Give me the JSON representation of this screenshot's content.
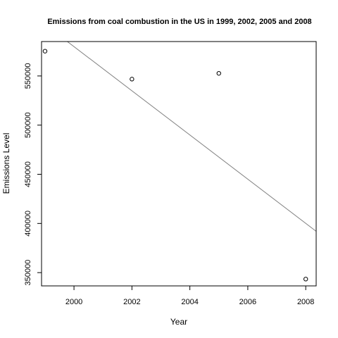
{
  "chart_data": {
    "type": "scatter",
    "title": "Emissions from coal combustion in the US in 1999, 2002, 2005 and 2008",
    "xlabel": "Year",
    "ylabel": "Emissions Level",
    "x": [
      1999,
      2002,
      2005,
      2008
    ],
    "y": [
      575207,
      546789,
      552675,
      343432
    ],
    "xlim": [
      1998.88,
      2008.36
    ],
    "ylim": [
      336500,
      585000
    ],
    "xticks": [
      2000,
      2002,
      2004,
      2006,
      2008
    ],
    "xtick_labels": [
      "2000",
      "2002",
      "2004",
      "2006",
      "2008"
    ],
    "yticks": [
      350000,
      400000,
      450000,
      500000,
      550000
    ],
    "ytick_labels": [
      "350000",
      "400000",
      "450000",
      "500000",
      "550000"
    ],
    "trend_line": {
      "x": [
        1998.88,
        2008.36
      ],
      "y": [
        605000,
        392000
      ],
      "color": "#808080"
    },
    "point_style": "open-circle",
    "grid": false,
    "legend": "none"
  }
}
